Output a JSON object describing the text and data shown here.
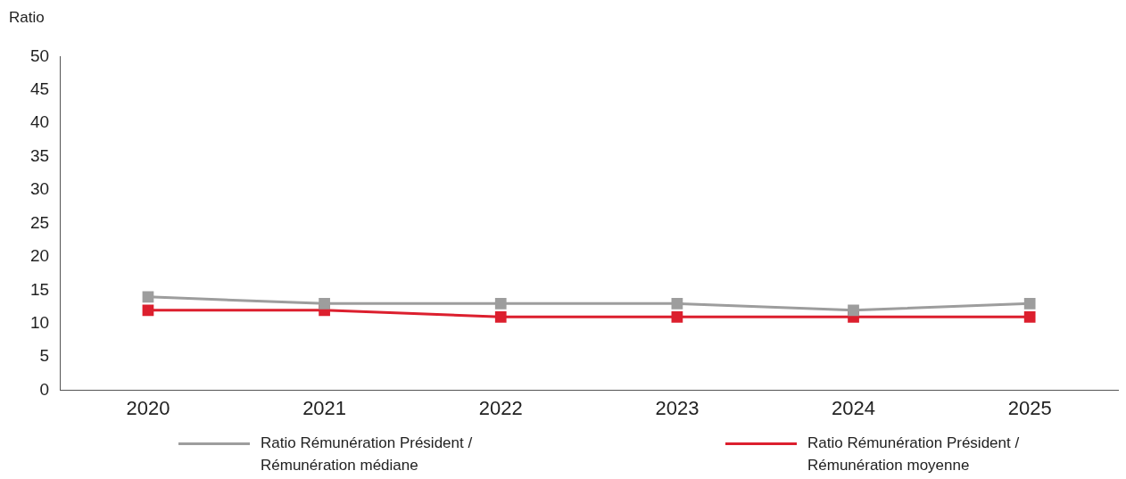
{
  "chart_data": {
    "type": "line",
    "ylabel": "Ratio",
    "categories": [
      "2020",
      "2021",
      "2022",
      "2023",
      "2024",
      "2025"
    ],
    "series": [
      {
        "name": "Ratio Rémunération Président / Rémunération médiane",
        "color": "#9d9d9d",
        "values": [
          14,
          13,
          13,
          13,
          12,
          13
        ]
      },
      {
        "name": "Ratio Rémunération Président / Rémunération moyenne",
        "color": "#dc1f2e",
        "values": [
          12,
          12,
          11,
          11,
          11,
          11
        ]
      }
    ],
    "ylim": [
      0,
      50
    ],
    "yticks": [
      0,
      5,
      10,
      15,
      20,
      25,
      30,
      35,
      40,
      45,
      50
    ],
    "grid": false,
    "legend": "bottom",
    "marker": "square",
    "line_style": "solid"
  }
}
